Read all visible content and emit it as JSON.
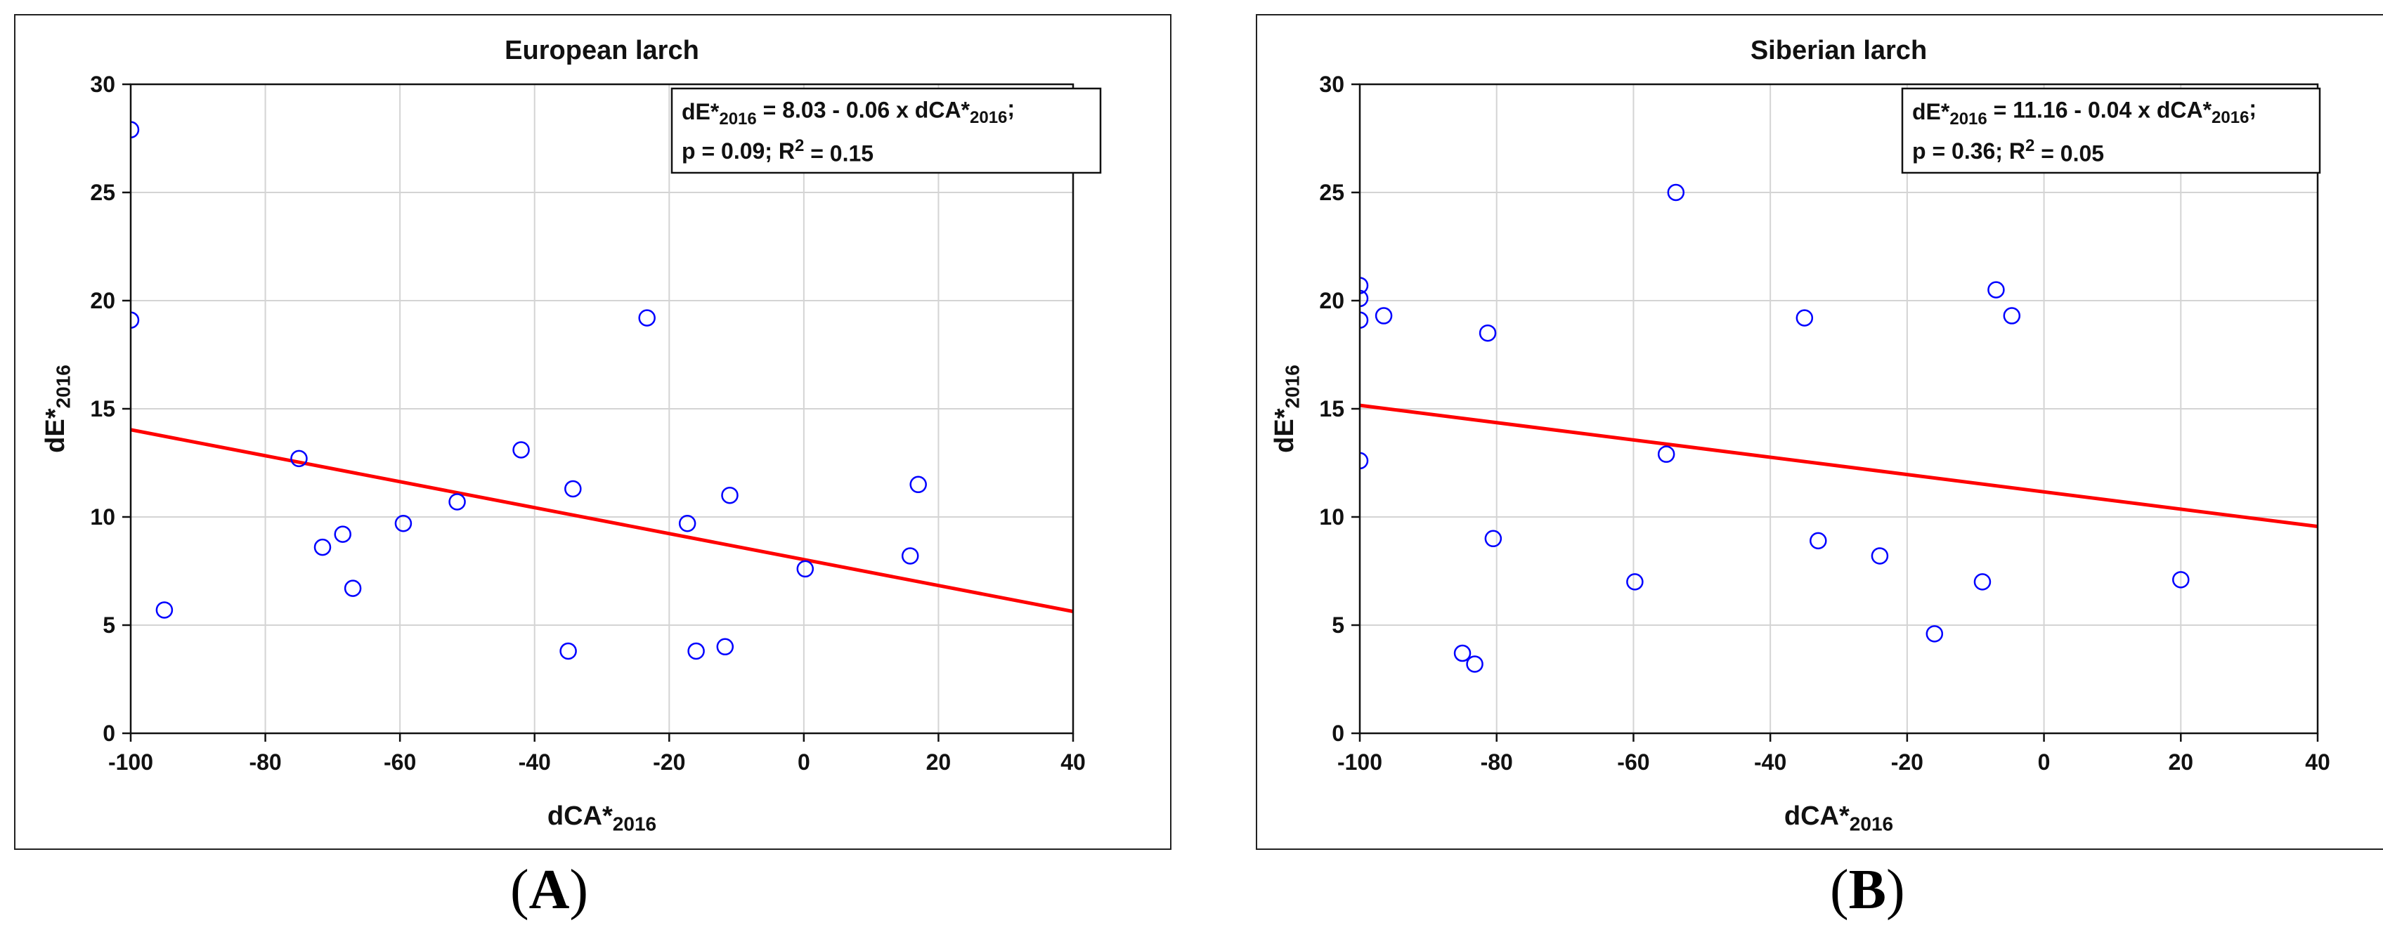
{
  "colors": {
    "point_stroke": "#0000ff",
    "fit_line": "#ff0000",
    "grid": "#d4d4d4",
    "frame": "#222222"
  },
  "panels": [
    {
      "letter": "A",
      "equation_line1": "dE*2016 = 8.03 - 0.06 x dCA*2016;",
      "equation_line2": "p = 0.09; R2 = 0.15"
    },
    {
      "letter": "B",
      "equation_line1": "dE*2016 = 11.16 - 0.04 x dCA*2016;",
      "equation_line2": "p = 0.36; R2 = 0.05"
    }
  ],
  "chart_data": [
    {
      "type": "scatter",
      "title": "European larch",
      "xlabel": "dCA*2016",
      "ylabel": "dE*2016",
      "xlim": [
        -100,
        40
      ],
      "ylim": [
        0,
        30
      ],
      "x_ticks": [
        -100,
        -80,
        -60,
        -40,
        -20,
        0,
        20,
        40
      ],
      "y_ticks": [
        0,
        5,
        10,
        15,
        20,
        25,
        30
      ],
      "grid": true,
      "points": [
        {
          "x": -100,
          "y": 27.9
        },
        {
          "x": -100,
          "y": 19.1
        },
        {
          "x": -95,
          "y": 5.7
        },
        {
          "x": -75,
          "y": 12.7
        },
        {
          "x": -71.5,
          "y": 8.6
        },
        {
          "x": -68.5,
          "y": 9.2
        },
        {
          "x": -67,
          "y": 6.7
        },
        {
          "x": -59.5,
          "y": 9.7
        },
        {
          "x": -51.5,
          "y": 10.7
        },
        {
          "x": -42,
          "y": 13.1
        },
        {
          "x": -35,
          "y": 3.8
        },
        {
          "x": -34.3,
          "y": 11.3
        },
        {
          "x": -23.3,
          "y": 19.2
        },
        {
          "x": -17.3,
          "y": 9.7
        },
        {
          "x": -16,
          "y": 3.8
        },
        {
          "x": -11.7,
          "y": 4.0
        },
        {
          "x": -11,
          "y": 11.0
        },
        {
          "x": 0.2,
          "y": 7.6
        },
        {
          "x": 15.8,
          "y": 8.2
        },
        {
          "x": 17,
          "y": 11.5
        }
      ],
      "fit_line": {
        "intercept": 8.03,
        "slope": -0.06
      }
    },
    {
      "type": "scatter",
      "title": "Siberian larch",
      "xlabel": "dCA*2016",
      "ylabel": "dE*2016",
      "xlim": [
        -100,
        40
      ],
      "ylim": [
        0,
        30
      ],
      "x_ticks": [
        -100,
        -80,
        -60,
        -40,
        -20,
        0,
        20,
        40
      ],
      "y_ticks": [
        0,
        5,
        10,
        15,
        20,
        25,
        30
      ],
      "grid": true,
      "points": [
        {
          "x": -100,
          "y": 20.7
        },
        {
          "x": -100,
          "y": 20.1
        },
        {
          "x": -100,
          "y": 19.1
        },
        {
          "x": -100,
          "y": 12.6
        },
        {
          "x": -96.5,
          "y": 19.3
        },
        {
          "x": -85,
          "y": 3.7
        },
        {
          "x": -83.2,
          "y": 3.2
        },
        {
          "x": -81.3,
          "y": 18.5
        },
        {
          "x": -80.5,
          "y": 9.0
        },
        {
          "x": -59.8,
          "y": 7.0
        },
        {
          "x": -55.2,
          "y": 12.9
        },
        {
          "x": -53.8,
          "y": 25.0
        },
        {
          "x": -35,
          "y": 19.2
        },
        {
          "x": -33,
          "y": 8.9
        },
        {
          "x": -24,
          "y": 8.2
        },
        {
          "x": -16,
          "y": 4.6
        },
        {
          "x": -9,
          "y": 7.0
        },
        {
          "x": -7,
          "y": 20.5
        },
        {
          "x": -4.7,
          "y": 19.3
        },
        {
          "x": 20,
          "y": 7.1
        }
      ],
      "fit_line": {
        "intercept": 11.16,
        "slope": -0.04
      }
    }
  ]
}
